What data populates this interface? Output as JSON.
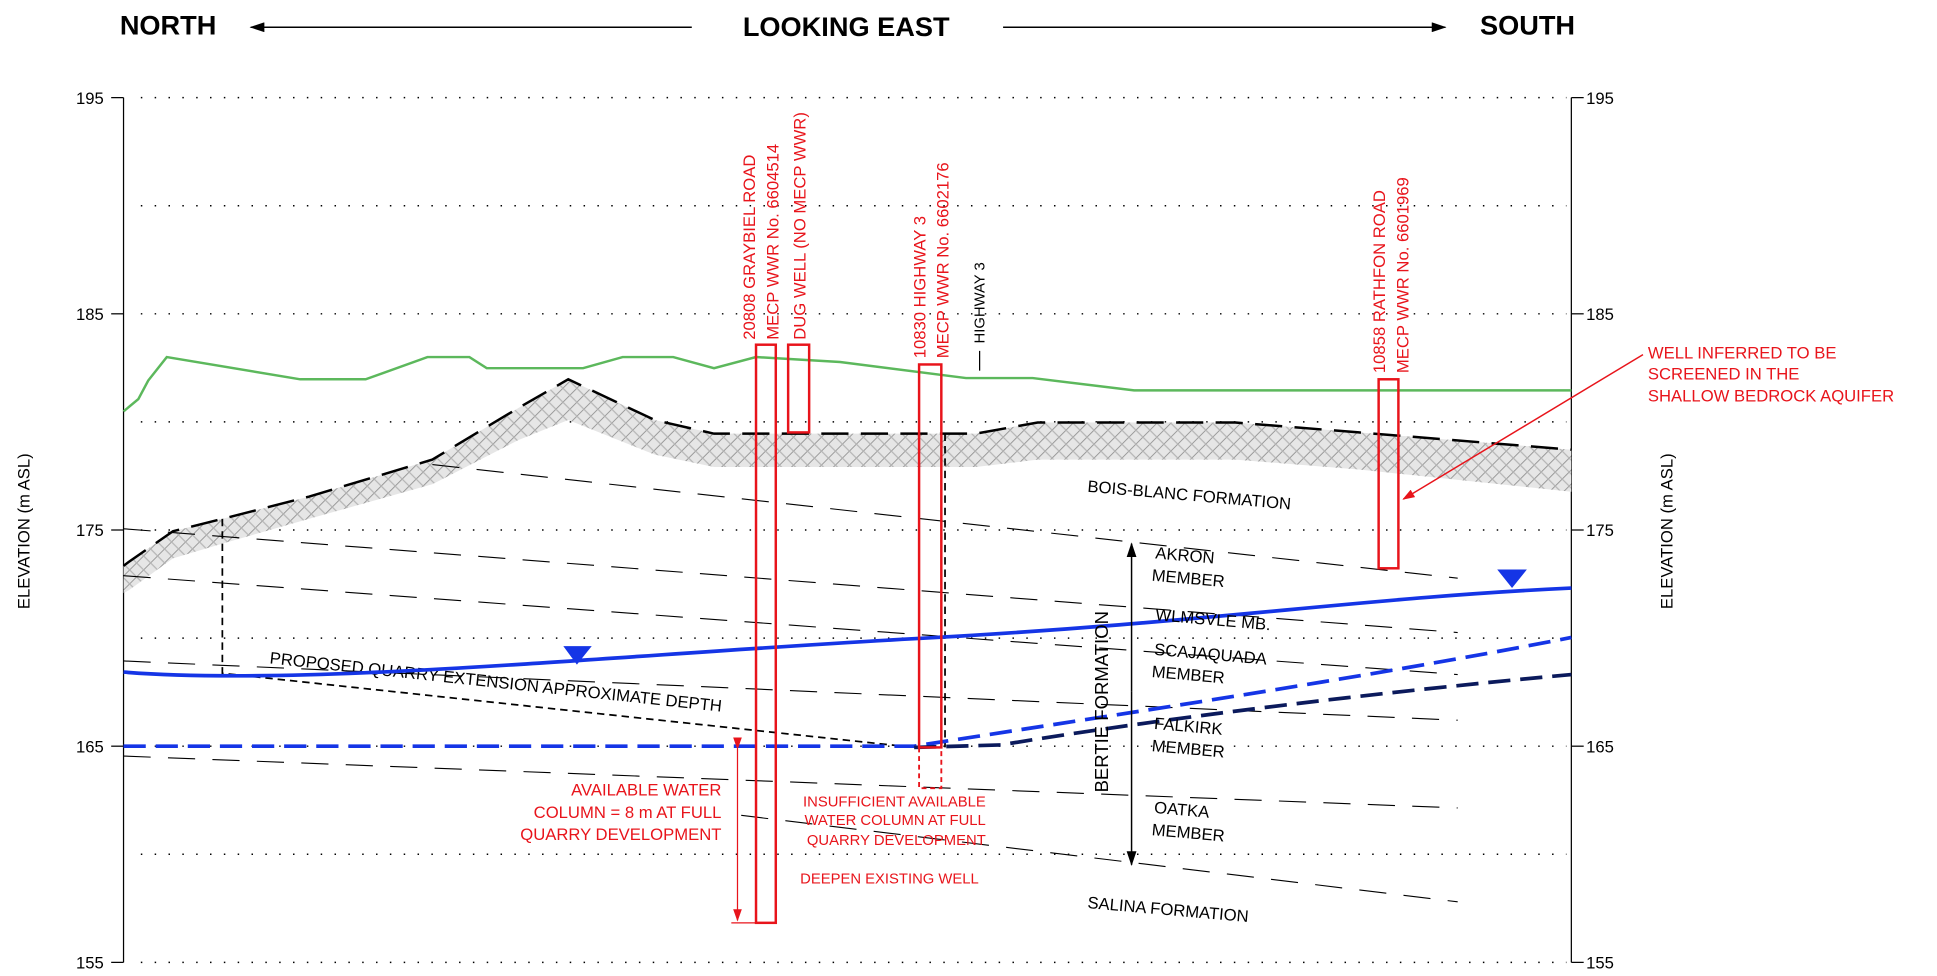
{
  "header": {
    "left": "NORTH",
    "center": "LOOKING EAST",
    "right": "SOUTH"
  },
  "axis": {
    "title_left": "ELEVATION (m ASL)",
    "title_right": "ELEVATION (m ASL)",
    "ticks": [
      195,
      185,
      175,
      165,
      155
    ]
  },
  "wells": [
    {
      "lines": [
        "20808 GRAYBIEL ROAD",
        "MECP WWR No. 6604514"
      ]
    },
    {
      "lines": [
        "DUG WELL (NO MECP WWR)"
      ]
    },
    {
      "lines": [
        "10830 HIGHWAY 3",
        "MECP WWR No. 6602176"
      ]
    },
    {
      "lines": [
        "10858 RATHFON ROAD",
        "MECP WWR No. 6601969"
      ]
    }
  ],
  "road_label": "HIGHWAY 3",
  "formations": {
    "bois_blanc": "BOIS-BLANC FORMATION",
    "akron": [
      "AKRON",
      "MEMBER"
    ],
    "williamsville": "WLMSVLE MB.",
    "scajaquada": [
      "SCAJAQUADA",
      "MEMBER"
    ],
    "falkirk": [
      "FALKIRK",
      "MEMBER"
    ],
    "oatka": [
      "OATKA",
      "MEMBER"
    ],
    "bertie": "BERTIE FORMATION",
    "salina": "SALINA FORMATION"
  },
  "quarry_depth_label": "PROPOSED QUARRY EXTENSION APPROXIMATE DEPTH",
  "annotations": [
    {
      "lines": [
        "WELL INFERRED TO BE",
        "SCREENED IN THE",
        "SHALLOW BEDROCK AQUIFER"
      ]
    },
    {
      "lines": [
        "AVAILABLE WATER",
        "COLUMN = 8 m AT FULL",
        "QUARRY DEVELOPMENT"
      ]
    },
    {
      "lines": [
        "INSUFFICIENT AVAILABLE",
        "WATER COLUMN AT FULL",
        "QUARRY DEVELOPMENT"
      ]
    },
    {
      "lines": [
        "DEEPEN EXISTING WELL"
      ]
    }
  ]
}
